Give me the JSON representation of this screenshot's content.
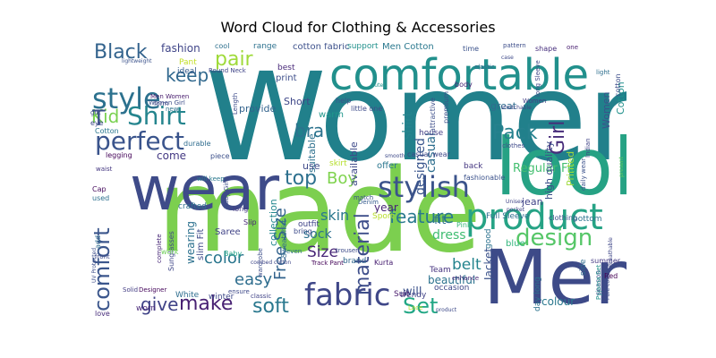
{
  "title": "Word Cloud for Clothing & Accessories",
  "words": [
    {
      "text": "Women",
      "color": "#21808b"
    },
    {
      "text": "made",
      "color": "#7ccf4f"
    },
    {
      "text": "look",
      "color": "#26a284"
    },
    {
      "text": "Men",
      "color": "#3d4a88"
    },
    {
      "text": "comfortable",
      "color": "#21908c"
    },
    {
      "text": "wear",
      "color": "#3e4b89"
    },
    {
      "text": "product",
      "color": "#26a385"
    },
    {
      "text": "fabric",
      "color": "#3f4788"
    },
    {
      "text": "style",
      "color": "#2c718e"
    },
    {
      "text": "perfect",
      "color": "#3a548c"
    },
    {
      "text": "Shirt",
      "color": "#25858e"
    },
    {
      "text": "stylish",
      "color": "#3b538b"
    },
    {
      "text": "design",
      "color": "#55c667"
    },
    {
      "text": "comfort",
      "color": "#3b568c"
    },
    {
      "text": "make",
      "color": "#482173"
    },
    {
      "text": "soft",
      "color": "#2a788e"
    },
    {
      "text": "Set",
      "color": "#22a785"
    },
    {
      "text": "give",
      "color": "#404387"
    },
    {
      "text": "Pack",
      "color": "#26818e"
    },
    {
      "text": "Girl",
      "color": "#472c7a"
    },
    {
      "text": "top",
      "color": "#2d708e"
    },
    {
      "text": "Boy",
      "color": "#7fd34e"
    },
    {
      "text": "Black",
      "color": "#33638d"
    },
    {
      "text": "pair",
      "color": "#9fda3a"
    },
    {
      "text": "keep",
      "color": "#31688e"
    },
    {
      "text": "Kid",
      "color": "#7ad151"
    },
    {
      "text": "T",
      "color": "#3b518b"
    },
    {
      "text": "bra",
      "color": "#2c738e"
    },
    {
      "text": "color",
      "color": "#2a768e"
    },
    {
      "text": "material",
      "color": "#3d4d8a"
    },
    {
      "text": "Free Size",
      "color": "#33638d"
    },
    {
      "text": "easy",
      "color": "#2e6d8e"
    },
    {
      "text": "Size",
      "color": "#482677"
    },
    {
      "text": "sock",
      "color": "#2d708e"
    },
    {
      "text": "belt",
      "color": "#25848e"
    },
    {
      "text": "feature",
      "color": "#29798e"
    },
    {
      "text": "skin",
      "color": "#2a778e"
    },
    {
      "text": "Regular Fit",
      "color": "#44bf70"
    },
    {
      "text": "casual",
      "color": "#2e6e8e"
    },
    {
      "text": "designed",
      "color": "#39558c"
    },
    {
      "text": "shirt",
      "color": "#25858e"
    },
    {
      "text": "high quality",
      "color": "#3c4f8a"
    },
    {
      "text": "Printed",
      "color": "#9fda3a"
    },
    {
      "text": "dress",
      "color": "#40bd72"
    },
    {
      "text": "fit",
      "color": "#2c718e"
    },
    {
      "text": "will",
      "color": "#3b528b"
    },
    {
      "text": "beautiful",
      "color": "#2c728e"
    },
    {
      "text": "year",
      "color": "#482475"
    },
    {
      "text": "Women",
      "color": "#3b518b"
    },
    {
      "text": "Cotton",
      "color": "#21918c"
    },
    {
      "text": "Jacket",
      "color": "#3b528b"
    },
    {
      "text": "colour",
      "color": "#2a788e"
    },
    {
      "text": "fashion",
      "color": "#404588"
    },
    {
      "text": "come",
      "color": "#443983"
    },
    {
      "text": "wearing",
      "color": "#2c718e"
    },
    {
      "text": "collection",
      "color": "#24878e"
    },
    {
      "text": "suitable",
      "color": "#2d708e"
    },
    {
      "text": "provide",
      "color": "#33638d"
    },
    {
      "text": "Short",
      "color": "#3f4889"
    },
    {
      "text": "warm",
      "color": "#1f978b"
    },
    {
      "text": "available",
      "color": "#3e4a89"
    },
    {
      "text": "great",
      "color": "#2f6c8e"
    },
    {
      "text": "Pant",
      "color": "#c2df23"
    },
    {
      "text": "ideal",
      "color": "#365c8d"
    },
    {
      "text": "print",
      "color": "#3d4e8a"
    },
    {
      "text": "best",
      "color": "#482979"
    },
    {
      "text": "cotton fabric",
      "color": "#3c508b"
    },
    {
      "text": "Men Cotton",
      "color": "#2a788e"
    },
    {
      "text": "Round Neck",
      "color": "#404588"
    },
    {
      "text": "Men Women",
      "color": "#481c6e"
    },
    {
      "text": "range",
      "color": "#2c718e"
    },
    {
      "text": "support",
      "color": "#21918c"
    },
    {
      "text": "time",
      "color": "#3b528b"
    },
    {
      "text": "pattern",
      "color": "#3d4e8a"
    },
    {
      "text": "shape",
      "color": "#472f7d"
    },
    {
      "text": "one",
      "color": "#481f70"
    },
    {
      "text": "cool",
      "color": "#2d708e"
    },
    {
      "text": "jean",
      "color": "#404387"
    },
    {
      "text": "use",
      "color": "#3e4a89"
    },
    {
      "text": "skirt",
      "color": "#b5de2b"
    },
    {
      "text": "offer",
      "color": "#2a768e"
    },
    {
      "text": "casual wear",
      "color": "#3f4889"
    },
    {
      "text": "Denim",
      "color": "#365c8d"
    },
    {
      "text": "Sport",
      "color": "#b8de29"
    },
    {
      "text": "Pink",
      "color": "#35b779"
    },
    {
      "text": "Full Sleeve",
      "color": "#2e6d8e"
    },
    {
      "text": "clothing",
      "color": "#3b528b"
    },
    {
      "text": "bottom",
      "color": "#2c738e"
    },
    {
      "text": "house",
      "color": "#433e85"
    },
    {
      "text": "back",
      "color": "#453781"
    },
    {
      "text": "fashionable",
      "color": "#3b528b"
    },
    {
      "text": "outfit",
      "color": "#404588"
    },
    {
      "text": "bring",
      "color": "#3e4c8a"
    },
    {
      "text": "Sweatshirt",
      "color": "#2f6b8e"
    },
    {
      "text": "Track Pant",
      "color": "#46075a"
    },
    {
      "text": "brand",
      "color": "#31678e"
    },
    {
      "text": "Kurta",
      "color": "#482071"
    },
    {
      "text": "occasion",
      "color": "#3f4788"
    },
    {
      "text": "trendy",
      "color": "#414287"
    },
    {
      "text": "Suit",
      "color": "#481a6c"
    },
    {
      "text": "good",
      "color": "#2c728e"
    },
    {
      "text": "blue",
      "color": "#31b57b"
    },
    {
      "text": "Team",
      "color": "#46337f"
    },
    {
      "text": "enhance",
      "color": "#482979"
    },
    {
      "text": "day long",
      "color": "#2c728e"
    },
    {
      "text": "Red",
      "color": "#440154"
    },
    {
      "text": "side",
      "color": "#2f6b8e"
    },
    {
      "text": "summer",
      "color": "#443983"
    },
    {
      "text": "season",
      "color": "#3c4f8a"
    },
    {
      "text": "Saree",
      "color": "#414487"
    },
    {
      "text": "Baby",
      "color": "#20a386"
    },
    {
      "text": "slim Fit",
      "color": "#3e4989"
    },
    {
      "text": "Sunglasses",
      "color": "#3f4788"
    },
    {
      "text": "complete",
      "color": "#482878"
    },
    {
      "text": "Solid",
      "color": "#433d84"
    },
    {
      "text": "Designer",
      "color": "#46085c"
    },
    {
      "text": "work",
      "color": "#6ece58"
    },
    {
      "text": "White",
      "color": "#2e6d8e"
    },
    {
      "text": "winter",
      "color": "#3e4989"
    },
    {
      "text": "worn",
      "color": "#482878"
    },
    {
      "text": "love",
      "color": "#472d7b"
    },
    {
      "text": "add",
      "color": "#2f6b8e"
    },
    {
      "text": "front",
      "color": "#3e4a89"
    },
    {
      "text": "long",
      "color": "#443a83"
    },
    {
      "text": "Cap",
      "color": "#460a5d"
    },
    {
      "text": "used",
      "color": "#2d708e"
    },
    {
      "text": "legging",
      "color": "#450559"
    },
    {
      "text": "waist",
      "color": "#453781"
    },
    {
      "text": "durable",
      "color": "#2f6c8e"
    },
    {
      "text": "piece",
      "color": "#3c4f8a"
    },
    {
      "text": "crafted",
      "color": "#2d708e"
    },
    {
      "text": "will keep",
      "color": "#2a788e"
    },
    {
      "text": "Cotton",
      "color": "#2a778e"
    },
    {
      "text": "eye",
      "color": "#3e4a89"
    },
    {
      "text": "gift",
      "color": "#3f4788"
    },
    {
      "text": "form",
      "color": "#3e4989"
    },
    {
      "text": "new",
      "color": "#2c718e"
    },
    {
      "text": "Women Girl",
      "color": "#3d4e8a"
    },
    {
      "text": "lightweight",
      "color": "#3b528b"
    },
    {
      "text": "help",
      "color": "#3b528b"
    },
    {
      "text": "little one",
      "color": "#3e4c8a"
    },
    {
      "text": "body",
      "color": "#482475"
    },
    {
      "text": "elastic",
      "color": "#2f6b8e"
    },
    {
      "text": "case",
      "color": "#3e4989"
    },
    {
      "text": "Indian",
      "color": "#404387"
    },
    {
      "text": "light",
      "color": "#2e6f8e"
    },
    {
      "text": "Unisex",
      "color": "#414487"
    },
    {
      "text": "premium",
      "color": "#3b528b"
    },
    {
      "text": "attractive",
      "color": "#3d4e8a"
    },
    {
      "text": "long Sleeve",
      "color": "#3f4889"
    },
    {
      "text": "Women",
      "color": "#433e85"
    },
    {
      "text": "cotton",
      "color": "#3d4d8a"
    },
    {
      "text": "daily wear",
      "color": "#3b528b"
    },
    {
      "text": "Slip",
      "color": "#482677"
    },
    {
      "text": "ensure",
      "color": "#3e4989"
    },
    {
      "text": "classic",
      "color": "#404387"
    },
    {
      "text": "wardrobe",
      "color": "#3d4e8a"
    },
    {
      "text": "combed cotton",
      "color": "#3f4788"
    },
    {
      "text": "match",
      "color": "#3b528b"
    },
    {
      "text": "even",
      "color": "#2f6b8e"
    },
    {
      "text": "trouser",
      "color": "#3e4c8a"
    },
    {
      "text": "Lace",
      "color": "#b2dd2d"
    },
    {
      "text": "Pyjama Set",
      "color": "#21918c"
    },
    {
      "text": "Pure cotton",
      "color": "#3d4d8a"
    },
    {
      "text": "Breathable",
      "color": "#3f4788"
    },
    {
      "text": "product",
      "color": "#3e4a89"
    },
    {
      "text": "pocket",
      "color": "#404387"
    },
    {
      "text": "clothes",
      "color": "#3e4989"
    },
    {
      "text": "stretchable",
      "color": "#3f4788"
    },
    {
      "text": "Length",
      "color": "#3e4c8a"
    },
    {
      "text": "Baby Girl",
      "color": "#3d4e8a"
    },
    {
      "text": "UV Protected",
      "color": "#3d4e8a"
    },
    {
      "text": "present",
      "color": "#5cc863"
    },
    {
      "text": "smooth",
      "color": "#3e4a89"
    },
    {
      "text": "cute",
      "color": "#21918c"
    }
  ]
}
